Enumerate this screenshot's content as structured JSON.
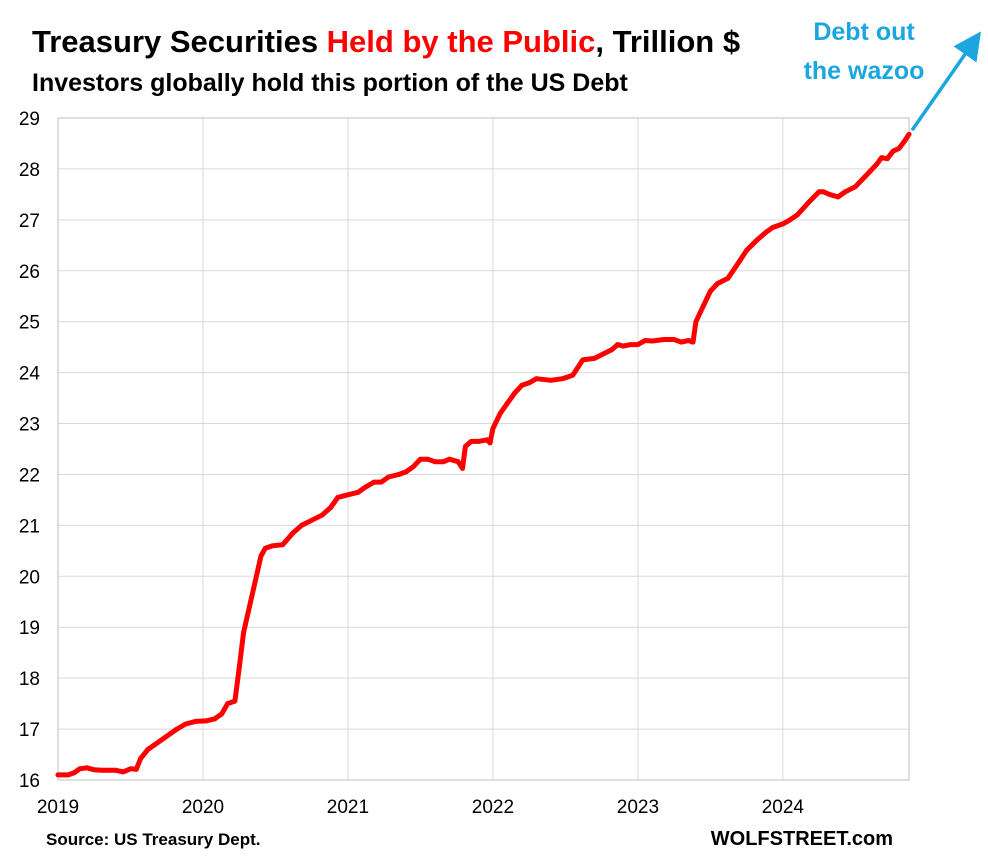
{
  "chart_data": {
    "type": "line",
    "title_part1": "Treasury Securities ",
    "title_highlight": "Held by the Public",
    "title_part2": ", Trillion $",
    "subtitle": "Investors globally hold this portion of the US Debt",
    "xlabel": "",
    "ylabel": "",
    "xlim": [
      2019.0,
      2024.87
    ],
    "ylim": [
      16,
      29
    ],
    "y_ticks": [
      "16",
      "17",
      "18",
      "19",
      "20",
      "21",
      "22",
      "23",
      "24",
      "25",
      "26",
      "27",
      "28",
      "29"
    ],
    "x_ticks": [
      "2019",
      "2020",
      "2021",
      "2022",
      "2023",
      "2024"
    ],
    "grid": true,
    "series": [
      {
        "color": "#ff0000",
        "points": [
          [
            2019.0,
            16.1
          ],
          [
            2019.04,
            16.1
          ],
          [
            2019.07,
            16.1
          ],
          [
            2019.11,
            16.14
          ],
          [
            2019.15,
            16.22
          ],
          [
            2019.2,
            16.24
          ],
          [
            2019.25,
            16.2
          ],
          [
            2019.3,
            16.19
          ],
          [
            2019.35,
            16.19
          ],
          [
            2019.4,
            16.19
          ],
          [
            2019.45,
            16.16
          ],
          [
            2019.5,
            16.22
          ],
          [
            2019.54,
            16.21
          ],
          [
            2019.57,
            16.42
          ],
          [
            2019.62,
            16.6
          ],
          [
            2019.67,
            16.7
          ],
          [
            2019.72,
            16.8
          ],
          [
            2019.77,
            16.9
          ],
          [
            2019.82,
            17.0
          ],
          [
            2019.88,
            17.1
          ],
          [
            2019.95,
            17.15
          ],
          [
            2020.02,
            17.16
          ],
          [
            2020.08,
            17.2
          ],
          [
            2020.13,
            17.3
          ],
          [
            2020.17,
            17.5
          ],
          [
            2020.22,
            17.55
          ],
          [
            2020.25,
            18.2
          ],
          [
            2020.28,
            18.9
          ],
          [
            2020.32,
            19.4
          ],
          [
            2020.36,
            19.9
          ],
          [
            2020.4,
            20.4
          ],
          [
            2020.43,
            20.55
          ],
          [
            2020.48,
            20.6
          ],
          [
            2020.55,
            20.62
          ],
          [
            2020.62,
            20.85
          ],
          [
            2020.68,
            21.0
          ],
          [
            2020.75,
            21.1
          ],
          [
            2020.82,
            21.2
          ],
          [
            2020.88,
            21.35
          ],
          [
            2020.93,
            21.55
          ],
          [
            2021.0,
            21.6
          ],
          [
            2021.07,
            21.65
          ],
          [
            2021.12,
            21.75
          ],
          [
            2021.18,
            21.85
          ],
          [
            2021.23,
            21.85
          ],
          [
            2021.28,
            21.95
          ],
          [
            2021.35,
            22.0
          ],
          [
            2021.4,
            22.05
          ],
          [
            2021.45,
            22.15
          ],
          [
            2021.5,
            22.3
          ],
          [
            2021.55,
            22.3
          ],
          [
            2021.6,
            22.25
          ],
          [
            2021.66,
            22.25
          ],
          [
            2021.7,
            22.3
          ],
          [
            2021.76,
            22.25
          ],
          [
            2021.79,
            22.12
          ],
          [
            2021.81,
            22.55
          ],
          [
            2021.85,
            22.65
          ],
          [
            2021.9,
            22.65
          ],
          [
            2021.96,
            22.68
          ],
          [
            2021.98,
            22.62
          ],
          [
            2022.0,
            22.9
          ],
          [
            2022.05,
            23.2
          ],
          [
            2022.1,
            23.4
          ],
          [
            2022.15,
            23.6
          ],
          [
            2022.2,
            23.75
          ],
          [
            2022.25,
            23.8
          ],
          [
            2022.3,
            23.88
          ],
          [
            2022.4,
            23.85
          ],
          [
            2022.48,
            23.88
          ],
          [
            2022.55,
            23.95
          ],
          [
            2022.62,
            24.25
          ],
          [
            2022.7,
            24.28
          ],
          [
            2022.75,
            24.35
          ],
          [
            2022.82,
            24.45
          ],
          [
            2022.86,
            24.55
          ],
          [
            2022.9,
            24.52
          ],
          [
            2022.95,
            24.55
          ],
          [
            2023.0,
            24.55
          ],
          [
            2023.05,
            24.63
          ],
          [
            2023.1,
            24.62
          ],
          [
            2023.18,
            24.65
          ],
          [
            2023.25,
            24.65
          ],
          [
            2023.3,
            24.6
          ],
          [
            2023.35,
            24.63
          ],
          [
            2023.38,
            24.6
          ],
          [
            2023.4,
            25.0
          ],
          [
            2023.45,
            25.3
          ],
          [
            2023.5,
            25.6
          ],
          [
            2023.55,
            25.75
          ],
          [
            2023.62,
            25.85
          ],
          [
            2023.68,
            26.1
          ],
          [
            2023.75,
            26.4
          ],
          [
            2023.82,
            26.6
          ],
          [
            2023.88,
            26.75
          ],
          [
            2023.93,
            26.85
          ],
          [
            2024.0,
            26.92
          ],
          [
            2024.05,
            27.0
          ],
          [
            2024.1,
            27.1
          ],
          [
            2024.18,
            27.35
          ],
          [
            2024.25,
            27.55
          ],
          [
            2024.28,
            27.55
          ],
          [
            2024.32,
            27.5
          ],
          [
            2024.38,
            27.45
          ],
          [
            2024.43,
            27.55
          ],
          [
            2024.5,
            27.65
          ],
          [
            2024.55,
            27.8
          ],
          [
            2024.6,
            27.95
          ],
          [
            2024.65,
            28.1
          ],
          [
            2024.68,
            28.22
          ],
          [
            2024.72,
            28.2
          ],
          [
            2024.76,
            28.35
          ],
          [
            2024.8,
            28.4
          ],
          [
            2024.84,
            28.55
          ],
          [
            2024.87,
            28.68
          ]
        ]
      }
    ],
    "annotation": "Debt out the wazoo",
    "annotation_line1": "Debt out",
    "annotation_line2": "the wazoo",
    "annotation_color": "#1ba6e0",
    "highlight_color": "#ff0000"
  },
  "footer": {
    "source": "Source: US Treasury Dept.",
    "brand": "WOLFSTREET.com"
  }
}
